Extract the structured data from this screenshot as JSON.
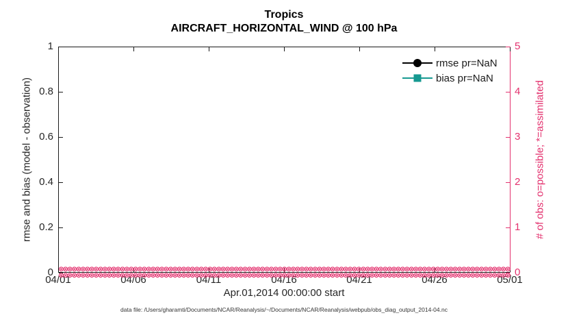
{
  "title": {
    "line1": "Tropics",
    "line2": "AIRCRAFT_HORIZONTAL_WIND @ 100 hPa"
  },
  "legend": [
    {
      "label": "rmse pr=NaN",
      "marker": "circle",
      "color": "#000000"
    },
    {
      "label": "bias pr=NaN",
      "marker": "square",
      "color": "#169991"
    }
  ],
  "left_axis": {
    "label": "rmse and bias (model - observation)",
    "ticks": [
      "0",
      "0.2",
      "0.4",
      "0.6",
      "0.8",
      "1"
    ],
    "range": [
      0,
      1
    ]
  },
  "right_axis": {
    "label": "# of obs: o=possible; *=assimilated",
    "ticks": [
      "0",
      "1",
      "2",
      "3",
      "4",
      "5"
    ],
    "range": [
      0,
      5
    ]
  },
  "x_axis": {
    "label": "Apr.01,2014 00:00:00 start",
    "ticks": [
      "04/01",
      "04/06",
      "04/11",
      "04/16",
      "04/21",
      "04/26",
      "05/01"
    ]
  },
  "obs_band": {
    "marker_char": "⊗",
    "repeat": 130,
    "rows": 2,
    "value": 0
  },
  "footer": "data file: /Users/gharamti/Documents/NCAR/Reanalysis/~/Documents/NCAR/Reanalysis/webpub/obs_diag_output_2014-04.nc",
  "colors": {
    "accent_magenta": "#e3316e",
    "axis_dark": "#1a1a1a",
    "tick_text": "#262626",
    "teal": "#169991",
    "black": "#000000"
  },
  "chart_data": {
    "type": "line",
    "title": "Tropics — AIRCRAFT_HORIZONTAL_WIND @ 100 hPa",
    "xlabel": "Apr.01,2014 00:00:00 start",
    "x_ticks": [
      "04/01",
      "04/06",
      "04/11",
      "04/16",
      "04/21",
      "04/26",
      "05/01"
    ],
    "left_axis": {
      "label": "rmse and bias (model - observation)",
      "range": [
        0,
        1
      ]
    },
    "right_axis": {
      "label": "# of obs: o=possible; *=assimilated",
      "range": [
        0,
        5
      ]
    },
    "series": [
      {
        "name": "rmse pr=NaN",
        "axis": "left",
        "marker": "filled-circle",
        "color": "#000000",
        "values": "NaN (no curve plotted)"
      },
      {
        "name": "bias pr=NaN",
        "axis": "left",
        "marker": "filled-square",
        "color": "#169991",
        "values": "NaN (no curve plotted)"
      },
      {
        "name": "# of obs possible (o)",
        "axis": "right",
        "marker": "o",
        "color": "#e3316e",
        "constant_value": 0,
        "note": "dense markers along y=0 across entire April 2014 span"
      },
      {
        "name": "# of obs assimilated (*)",
        "axis": "right",
        "marker": "*",
        "color": "#e3316e",
        "constant_value": 0,
        "note": "dense markers along y=0 across entire April 2014 span"
      }
    ],
    "legend_position": "top-right, no box",
    "grid": false
  }
}
